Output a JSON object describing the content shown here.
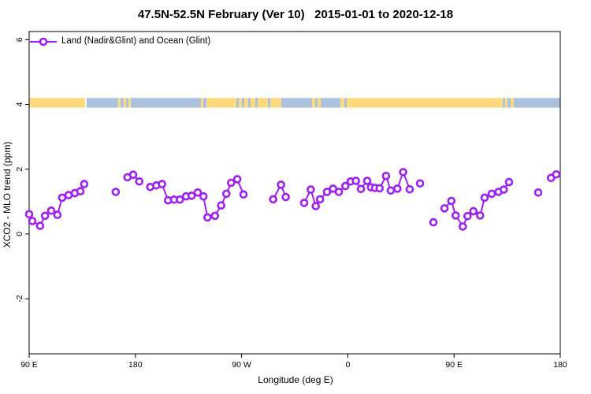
{
  "chart_data": {
    "type": "line",
    "title": "47.5N-52.5N February (Ver 10)   2015-01-01 to 2020-12-18",
    "xlabel": "Longitude (deg E)",
    "ylabel": "XCO2 - MLO trend (ppm)",
    "legend_label": "Land (Nadir&Glint) and Ocean (Glint)",
    "legend_position": "top-left-inside",
    "grid": false,
    "series_color": "#A020F0",
    "marker": "open-circle",
    "x_axis": {
      "description": "Longitude wrapping eastward from 90E, total span 450 degrees",
      "span_deg": 450,
      "ticks": [
        {
          "deg": 0,
          "label": "90 E"
        },
        {
          "deg": 90,
          "label": "180"
        },
        {
          "deg": 180,
          "label": "90 W"
        },
        {
          "deg": 270,
          "label": "0"
        },
        {
          "deg": 360,
          "label": "90 E"
        },
        {
          "deg": 450,
          "label": "180"
        }
      ]
    },
    "y_axis": {
      "ylim": [
        -3.7,
        6.25
      ],
      "ticks": [
        -2,
        0,
        2,
        4,
        6
      ],
      "tick_labels": [
        "-2",
        "0",
        "2",
        "4",
        "6"
      ]
    },
    "surface_band": {
      "comment": "land/ocean strip drawn across plot near y=4 ppm",
      "top_ppm": 4.2,
      "bottom_ppm": 3.9,
      "land_color": "#FEDA7E",
      "ocean_color": "#ABC1DD",
      "segments": [
        [
          0,
          47.4,
          "land"
        ],
        [
          48.7,
          75.4,
          "ocean"
        ],
        [
          75.4,
          77.4,
          "land"
        ],
        [
          77.4,
          80.1,
          "ocean"
        ],
        [
          80.1,
          82.1,
          "land"
        ],
        [
          82.1,
          84.1,
          "ocean"
        ],
        [
          84.1,
          86.1,
          "land"
        ],
        [
          86.1,
          145.5,
          "ocean"
        ],
        [
          145.5,
          147.5,
          "land"
        ],
        [
          147.5,
          150.2,
          "ocean"
        ],
        [
          150.2,
          175.6,
          "land"
        ],
        [
          175.6,
          177.6,
          "ocean"
        ],
        [
          177.6,
          180.3,
          "land"
        ],
        [
          180.3,
          182.3,
          "ocean"
        ],
        [
          182.3,
          185.6,
          "land"
        ],
        [
          185.6,
          187.6,
          "ocean"
        ],
        [
          187.6,
          191.6,
          "land"
        ],
        [
          191.6,
          193.6,
          "ocean"
        ],
        [
          193.6,
          202.3,
          "land"
        ],
        [
          202.3,
          204.3,
          "ocean"
        ],
        [
          204.3,
          213.6,
          "land"
        ],
        [
          213.6,
          239.7,
          "ocean"
        ],
        [
          239.7,
          242.4,
          "land"
        ],
        [
          242.4,
          244.4,
          "ocean"
        ],
        [
          244.4,
          247.0,
          "land"
        ],
        [
          247.0,
          263.7,
          "ocean"
        ],
        [
          263.7,
          267.1,
          "land"
        ],
        [
          267.1,
          269.1,
          "ocean"
        ],
        [
          269.1,
          401.3,
          "land"
        ],
        [
          401.3,
          403.3,
          "ocean"
        ],
        [
          403.3,
          405.3,
          "land"
        ],
        [
          405.3,
          408.0,
          "ocean"
        ],
        [
          408.0,
          410.6,
          "land"
        ],
        [
          410.6,
          450.0,
          "ocean"
        ]
      ]
    },
    "clusters": [
      [
        [
          0,
          0.61
        ],
        [
          2.7,
          0.4
        ],
        [
          9.3,
          0.25
        ],
        [
          13.4,
          0.56
        ],
        [
          18.7,
          0.72
        ],
        [
          24.0,
          0.59
        ],
        [
          28.0,
          1.12
        ],
        [
          33.4,
          1.2
        ],
        [
          38.7,
          1.26
        ],
        [
          43.4,
          1.32
        ],
        [
          46.7,
          1.54
        ]
      ],
      [
        [
          73.4,
          1.3
        ]
      ],
      [
        [
          83.3,
          1.75
        ],
        [
          88.1,
          1.83
        ],
        [
          93.3,
          1.62
        ]
      ],
      [
        [
          102.6,
          1.45
        ],
        [
          107.7,
          1.5
        ],
        [
          112.6,
          1.54
        ],
        [
          117.7,
          1.04
        ],
        [
          122.8,
          1.06
        ],
        [
          127.7,
          1.06
        ],
        [
          132.9,
          1.16
        ],
        [
          137.7,
          1.18
        ],
        [
          142.9,
          1.28
        ],
        [
          147.7,
          1.16
        ],
        [
          151.1,
          0.51
        ],
        [
          157.4,
          0.56
        ],
        [
          162.7,
          0.88
        ],
        [
          167.1,
          1.24
        ],
        [
          171.1,
          1.58
        ],
        [
          176.3,
          1.69
        ],
        [
          181.6,
          1.22
        ]
      ],
      [
        [
          206.8,
          1.07
        ],
        [
          213.4,
          1.52
        ],
        [
          217.4,
          1.14
        ]
      ],
      [
        [
          233.0,
          0.96
        ],
        [
          238.6,
          1.37
        ],
        [
          242.8,
          0.86
        ],
        [
          246.4,
          1.07
        ],
        [
          252.4,
          1.3
        ],
        [
          257.5,
          1.4
        ],
        [
          262.4,
          1.3
        ],
        [
          267.9,
          1.48
        ],
        [
          272.4,
          1.62
        ],
        [
          276.9,
          1.64
        ],
        [
          281.1,
          1.39
        ],
        [
          286.4,
          1.64
        ],
        [
          289.6,
          1.44
        ],
        [
          293.1,
          1.42
        ],
        [
          296.9,
          1.41
        ],
        [
          302.4,
          1.79
        ],
        [
          306.4,
          1.34
        ],
        [
          312.0,
          1.4
        ],
        [
          316.9,
          1.91
        ],
        [
          322.5,
          1.38
        ]
      ],
      [
        [
          331.2,
          1.56
        ]
      ],
      [
        [
          342.5,
          0.36
        ]
      ],
      [
        [
          351.9,
          0.79
        ],
        [
          357.7,
          1.02
        ],
        [
          361.4,
          0.57
        ],
        [
          367.4,
          0.23
        ],
        [
          371.4,
          0.55
        ],
        [
          376.4,
          0.7
        ],
        [
          382.1,
          0.57
        ],
        [
          385.9,
          1.12
        ],
        [
          391.9,
          1.24
        ],
        [
          397.7,
          1.3
        ],
        [
          402.1,
          1.37
        ],
        [
          406.6,
          1.6
        ]
      ],
      [
        [
          431.3,
          1.28
        ]
      ],
      [
        [
          442.2,
          1.73
        ],
        [
          446.6,
          1.84
        ]
      ]
    ]
  }
}
